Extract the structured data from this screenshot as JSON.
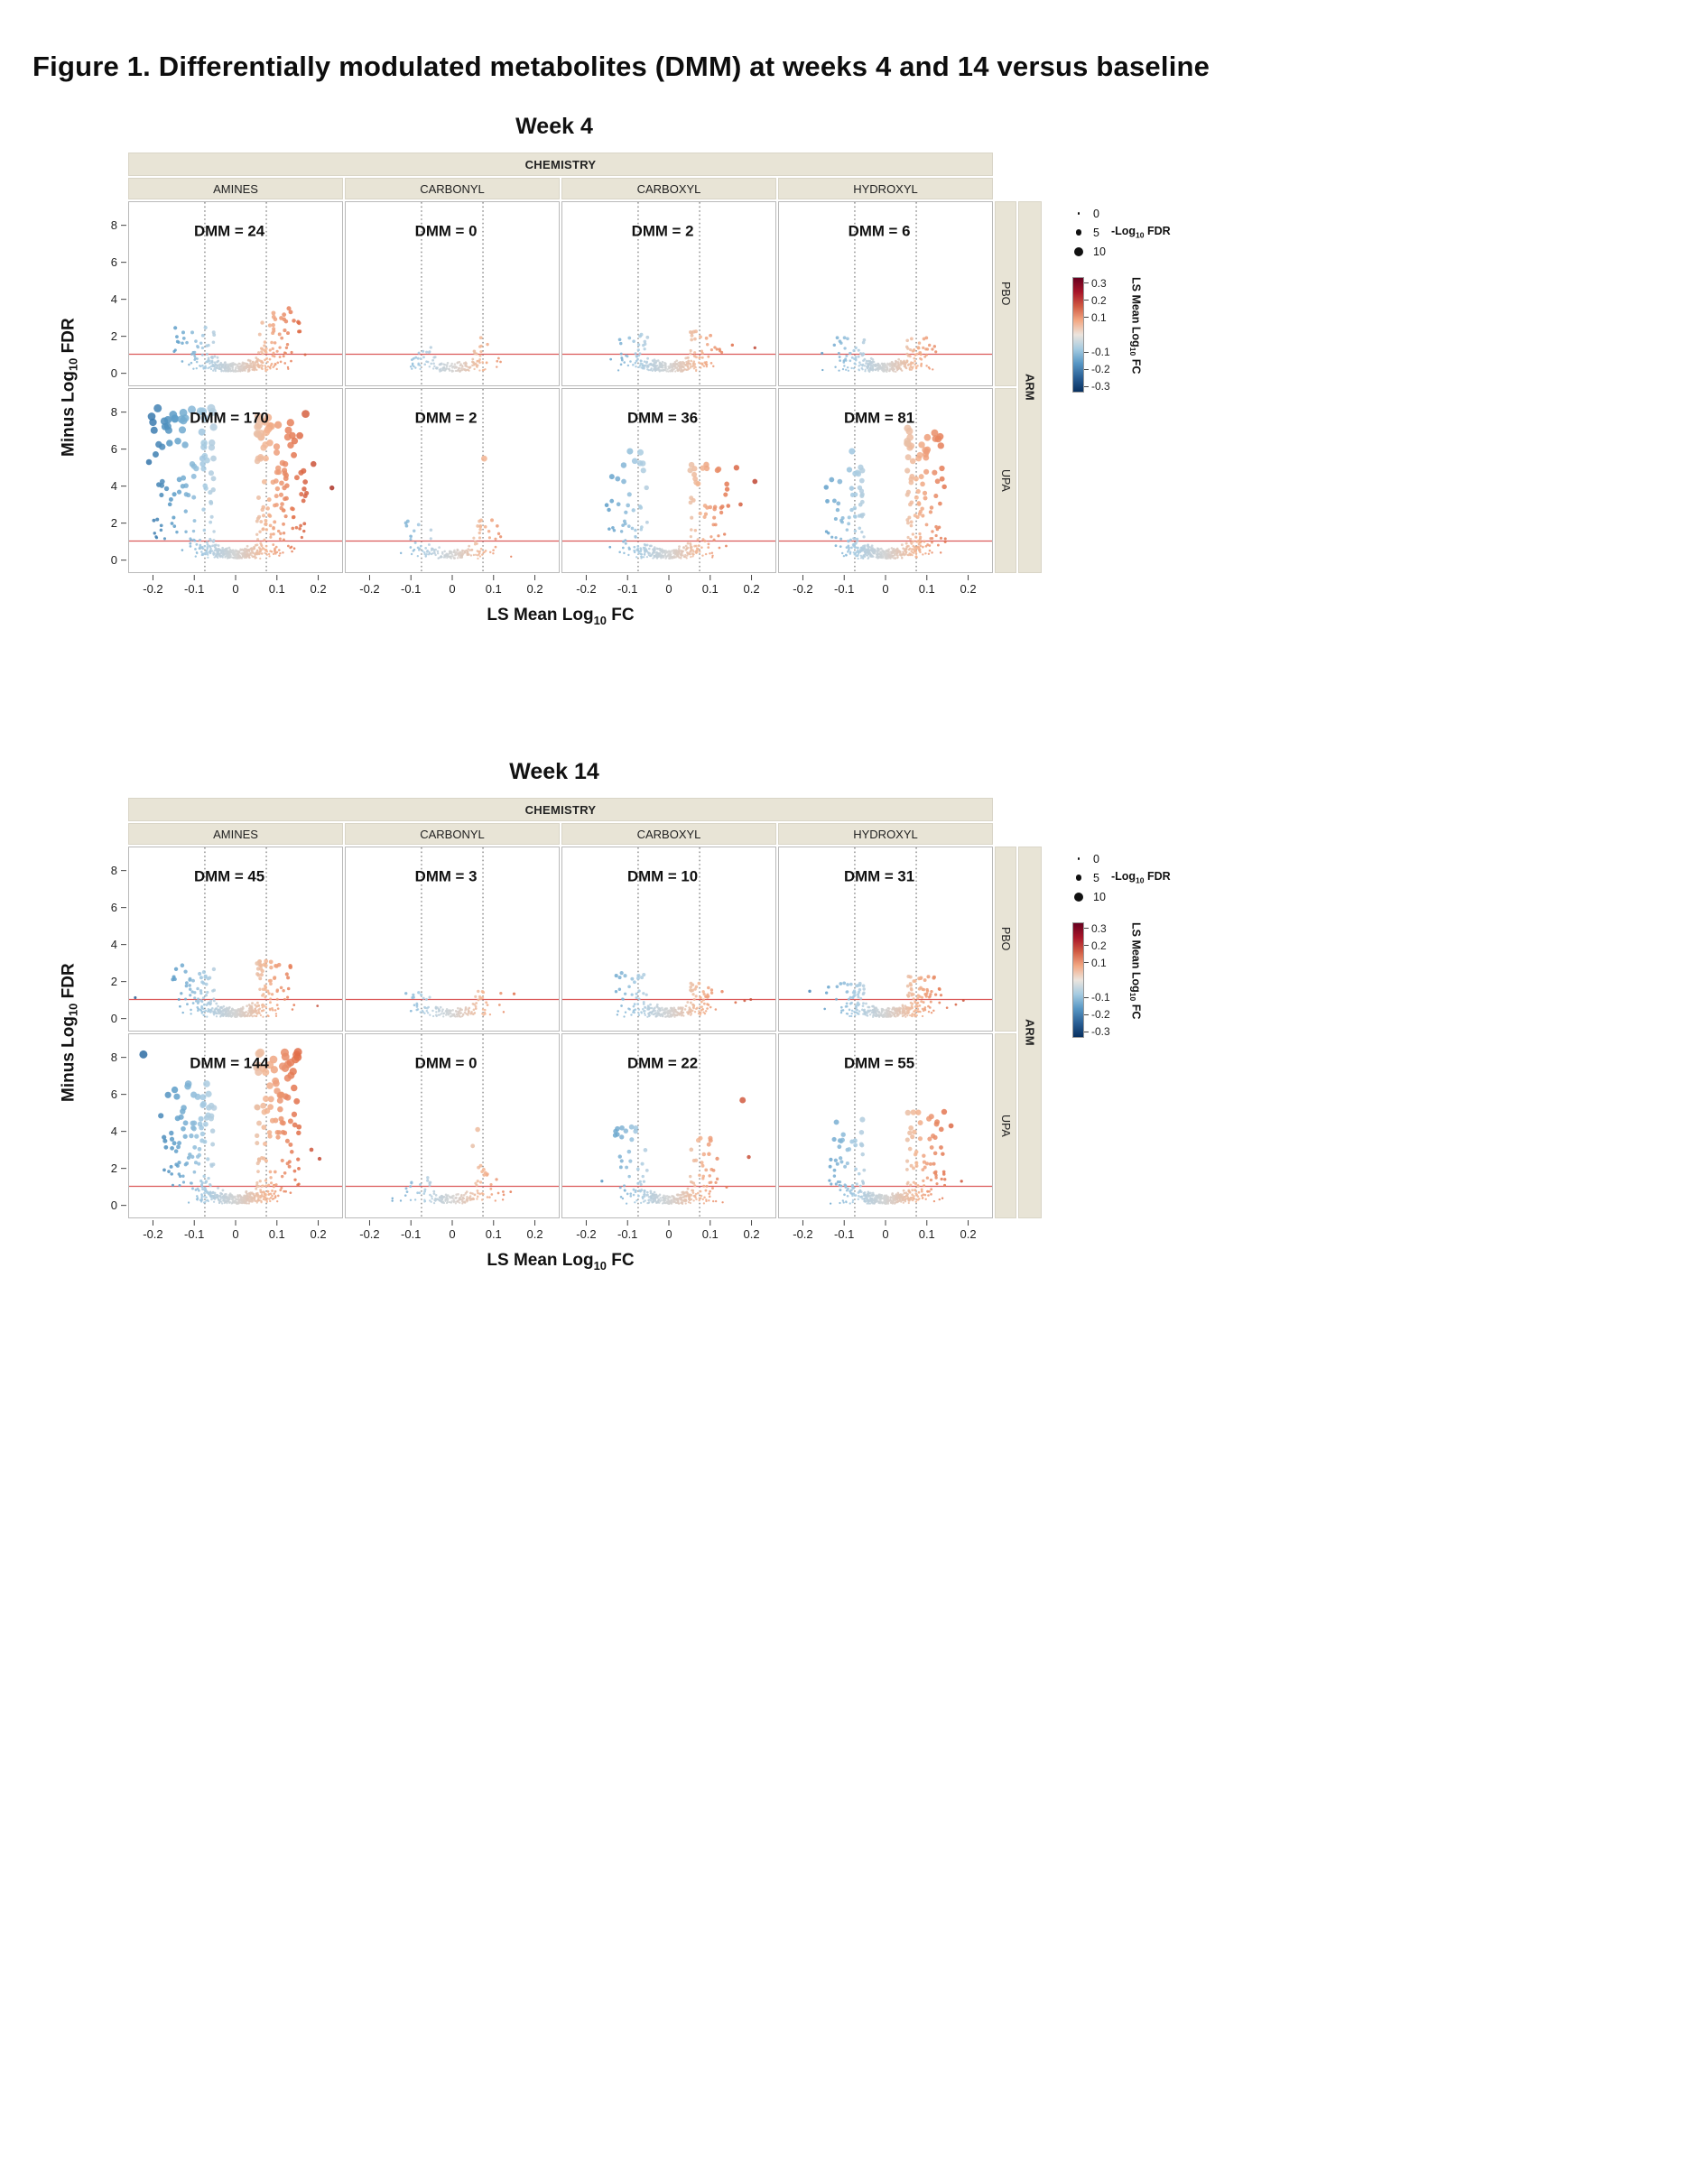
{
  "figure_title": "Figure 1. Differentially modulated metabolites (DMM) at weeks 4 and 14 versus baseline",
  "chart_data": {
    "type": "scatter",
    "subtype": "faceted_volcano_plots",
    "x_axis": {
      "label_prefix": "LS Mean Log",
      "label_sub": "10",
      "label_suffix": " FC",
      "tick_labels": [
        "-0.2",
        "-0.1",
        "0",
        "0.1",
        "0.2"
      ],
      "tick_values": [
        -0.2,
        -0.1,
        0,
        0.1,
        0.2
      ],
      "range": [
        -0.26,
        0.26
      ]
    },
    "y_axis": {
      "label_prefix": "Minus Log",
      "label_sub": "10",
      "label_suffix": " FDR",
      "tick_values": [
        0,
        2,
        4,
        6,
        8
      ],
      "range": [
        -0.7,
        9.3
      ]
    },
    "reference_lines": {
      "vlines": [
        -0.075,
        0.075
      ],
      "hline": 1,
      "hline_color": "#db5a5a",
      "vline_color": "#4a4a4a"
    },
    "strips": {
      "chemistry_title": "CHEMISTRY",
      "columns": [
        "AMINES",
        "CARBONYL",
        "CARBOXYL",
        "HYDROXYL"
      ],
      "arm_title": "ARM",
      "arm_rows": [
        "PBO",
        "UPA"
      ]
    },
    "legend": {
      "size": {
        "title_prefix": "-Log",
        "title_sub": "10",
        "title_suffix": " FDR",
        "items": [
          {
            "label": "0",
            "r": 1.3
          },
          {
            "label": "5",
            "r": 3.4
          },
          {
            "label": "10",
            "r": 5.0
          }
        ]
      },
      "color": {
        "title_prefix": "LS Mean Log",
        "title_sub": "10",
        "title_suffix": " FC",
        "ticks": [
          0.3,
          0.2,
          0.1,
          -0.1,
          -0.2,
          -0.3
        ],
        "domain": [
          0.335,
          -0.335
        ],
        "bar_stops": [
          "#67001f",
          "#a81529",
          "#d15b43",
          "#f3a883",
          "#ece5de",
          "#a5cbe1",
          "#5897c5",
          "#2a6096",
          "#083060"
        ]
      }
    },
    "palette": {
      "pos": [
        "#d3d3d3",
        "#f3b693",
        "#e2714b",
        "#b73a2c",
        "#6e0f10"
      ],
      "neg": [
        "#d3d3d3",
        "#a7cbe2",
        "#5c9dc8",
        "#2d6ca3",
        "#0b3160"
      ]
    },
    "weeks": [
      {
        "title": "Week 4",
        "rows": [
          {
            "arm": "PBO",
            "facets": [
              {
                "chemistry": "AMINES",
                "dmm": 24,
                "dmm_label": "DMM = 24",
                "gen": {
                  "base": 330,
                  "left": [
                    26,
                    2.5,
                    0.15
                  ],
                  "right": [
                    40,
                    3.3,
                    0.16
                  ],
                  "out": [
                    [
                      0.13,
                      3.5
                    ],
                    [
                      0.155,
                      2.7
                    ],
                    [
                      0.12,
                      2.3
                    ],
                    [
                      -0.13,
                      1.6
                    ]
                  ]
                }
              },
              {
                "chemistry": "CARBONYL",
                "dmm": 0,
                "dmm_label": "DMM = 0",
                "gen": {
                  "base": 150,
                  "left": [
                    6,
                    1.5,
                    0.09
                  ],
                  "right": [
                    9,
                    1.6,
                    0.1
                  ],
                  "out": [
                    [
                      0.07,
                      1.9
                    ]
                  ]
                }
              },
              {
                "chemistry": "CARBOXYL",
                "dmm": 2,
                "dmm_label": "DMM = 2",
                "gen": {
                  "base": 270,
                  "left": [
                    14,
                    2.1,
                    0.12
                  ],
                  "right": [
                    20,
                    2.3,
                    0.13
                  ],
                  "out": [
                    [
                      0.155,
                      1.5
                    ],
                    [
                      0.21,
                      1.35
                    ],
                    [
                      -0.12,
                      1.8
                    ]
                  ]
                }
              },
              {
                "chemistry": "HYDROXYL",
                "dmm": 6,
                "dmm_label": "DMM = 6",
                "gen": {
                  "base": 310,
                  "left": [
                    16,
                    1.9,
                    0.12
                  ],
                  "right": [
                    22,
                    1.9,
                    0.13
                  ],
                  "out": [
                    [
                      -0.155,
                      1.05
                    ],
                    [
                      -0.125,
                      1.5
                    ],
                    [
                      -0.1,
                      1.9
                    ]
                  ]
                }
              }
            ]
          },
          {
            "arm": "UPA",
            "facets": [
              {
                "chemistry": "AMINES",
                "dmm": 170,
                "dmm_label": "DMM = 170",
                "gen": {
                  "base": 400,
                  "left": [
                    95,
                    8.3,
                    0.215
                  ],
                  "right": [
                    115,
                    8.0,
                    0.175
                  ],
                  "out": [
                    [
                      0.235,
                      3.9
                    ],
                    [
                      -0.205,
                      7.8
                    ],
                    [
                      0.19,
                      5.2
                    ]
                  ]
                }
              },
              {
                "chemistry": "CARBONYL",
                "dmm": 2,
                "dmm_label": "DMM = 2",
                "gen": {
                  "base": 160,
                  "left": [
                    10,
                    2.3,
                    0.12
                  ],
                  "right": [
                    15,
                    2.5,
                    0.11
                  ],
                  "out": [
                    [
                      0.078,
                      5.5
                    ]
                  ]
                }
              },
              {
                "chemistry": "CARBOXYL",
                "dmm": 36,
                "dmm_label": "DMM = 36",
                "gen": {
                  "base": 290,
                  "left": [
                    32,
                    6.0,
                    0.165
                  ],
                  "right": [
                    42,
                    5.2,
                    0.145
                  ],
                  "out": [
                    [
                      0.21,
                      4.25
                    ],
                    [
                      0.165,
                      5.0
                    ],
                    [
                      0.175,
                      3.0
                    ],
                    [
                      -0.095,
                      5.9
                    ],
                    [
                      -0.125,
                      4.4
                    ]
                  ]
                }
              },
              {
                "chemistry": "HYDROXYL",
                "dmm": 81,
                "dmm_label": "DMM = 81",
                "gen": {
                  "base": 400,
                  "left": [
                    48,
                    5.2,
                    0.145
                  ],
                  "right": [
                    75,
                    7.2,
                    0.155
                  ],
                  "out": [
                    [
                      -0.082,
                      5.9
                    ],
                    [
                      0.12,
                      6.9
                    ],
                    [
                      0.135,
                      6.2
                    ]
                  ]
                }
              }
            ]
          }
        ]
      },
      {
        "title": "Week 14",
        "rows": [
          {
            "arm": "PBO",
            "facets": [
              {
                "chemistry": "AMINES",
                "dmm": 45,
                "dmm_label": "DMM = 45",
                "gen": {
                  "base": 360,
                  "left": [
                    38,
                    2.9,
                    0.155
                  ],
                  "right": [
                    50,
                    3.1,
                    0.135
                  ],
                  "out": [
                    [
                      -0.245,
                      1.1
                    ],
                    [
                      0.2,
                      0.65
                    ]
                  ]
                }
              },
              {
                "chemistry": "CARBONYL",
                "dmm": 3,
                "dmm_label": "DMM = 3",
                "gen": {
                  "base": 140,
                  "left": [
                    6,
                    1.4,
                    0.1
                  ],
                  "right": [
                    8,
                    1.6,
                    0.1
                  ],
                  "out": [
                    [
                      -0.095,
                      1.25
                    ]
                  ]
                }
              },
              {
                "chemistry": "CARBOXYL",
                "dmm": 10,
                "dmm_label": "DMM = 10",
                "gen": {
                  "base": 250,
                  "left": [
                    20,
                    2.5,
                    0.135
                  ],
                  "right": [
                    22,
                    1.9,
                    0.12
                  ],
                  "out": [
                    [
                      0.2,
                      1.0
                    ],
                    [
                      -0.12,
                      2.2
                    ]
                  ]
                }
              },
              {
                "chemistry": "HYDROXYL",
                "dmm": 31,
                "dmm_label": "DMM = 31",
                "gen": {
                  "base": 340,
                  "left": [
                    28,
                    1.9,
                    0.13
                  ],
                  "right": [
                    40,
                    2.3,
                    0.135
                  ],
                  "out": [
                    [
                      -0.185,
                      1.45
                    ],
                    [
                      0.19,
                      0.95
                    ],
                    [
                      0.15,
                      0.55
                    ]
                  ]
                }
              }
            ]
          },
          {
            "arm": "UPA",
            "facets": [
              {
                "chemistry": "AMINES",
                "dmm": 144,
                "dmm_label": "DMM = 144",
                "gen": {
                  "base": 400,
                  "left": [
                    85,
                    6.6,
                    0.185
                  ],
                  "right": [
                    100,
                    8.4,
                    0.155
                  ],
                  "out": [
                    [
                      -0.225,
                      8.2
                    ],
                    [
                      0.185,
                      3.0
                    ],
                    [
                      0.205,
                      2.5
                    ],
                    [
                      0.12,
                      8.3
                    ]
                  ]
                }
              },
              {
                "chemistry": "CARBONYL",
                "dmm": 0,
                "dmm_label": "DMM = 0",
                "gen": {
                  "base": 160,
                  "left": [
                    8,
                    1.7,
                    0.1
                  ],
                  "right": [
                    12,
                    2.2,
                    0.09
                  ],
                  "out": [
                    [
                      0.062,
                      4.1
                    ],
                    [
                      0.05,
                      3.2
                    ]
                  ]
                }
              },
              {
                "chemistry": "CARBOXYL",
                "dmm": 22,
                "dmm_label": "DMM = 22",
                "gen": {
                  "base": 270,
                  "left": [
                    26,
                    4.3,
                    0.145
                  ],
                  "right": [
                    30,
                    3.7,
                    0.125
                  ],
                  "out": [
                    [
                      0.18,
                      5.7
                    ],
                    [
                      0.195,
                      2.6
                    ],
                    [
                      -0.13,
                      4.0
                    ]
                  ]
                }
              },
              {
                "chemistry": "HYDROXYL",
                "dmm": 55,
                "dmm_label": "DMM = 55",
                "gen": {
                  "base": 380,
                  "left": [
                    42,
                    4.7,
                    0.145
                  ],
                  "right": [
                    58,
                    5.1,
                    0.145
                  ],
                  "out": [
                    [
                      0.16,
                      4.3
                    ],
                    [
                      -0.12,
                      4.5
                    ]
                  ]
                }
              }
            ]
          }
        ]
      }
    ]
  }
}
